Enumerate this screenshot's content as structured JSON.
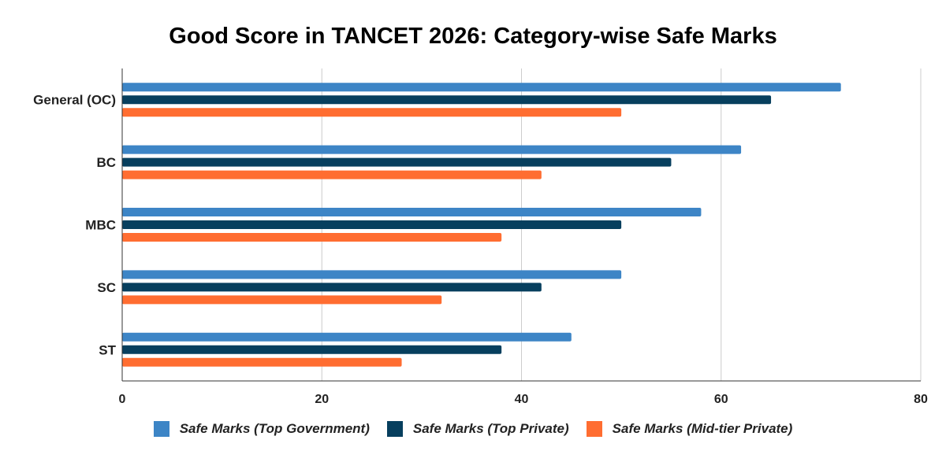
{
  "chart_data": {
    "type": "bar",
    "orientation": "horizontal",
    "title": "Good Score in TANCET 2026: Category-wise Safe Marks",
    "categories": [
      "General (OC)",
      "BC",
      "MBC",
      "SC",
      "ST"
    ],
    "series": [
      {
        "name": "Safe Marks (Top Government)",
        "color": "#3d85c6",
        "values": [
          72,
          62,
          58,
          50,
          45
        ]
      },
      {
        "name": "Safe Marks (Top Private)",
        "color": "#073f5e",
        "values": [
          65,
          55,
          50,
          42,
          38
        ]
      },
      {
        "name": "Safe Marks (Mid-tier Private)",
        "color": "#ff6d31",
        "values": [
          50,
          42,
          38,
          32,
          28
        ]
      }
    ],
    "xlim": [
      0,
      80
    ],
    "x_ticks": [
      0,
      20,
      40,
      60,
      80
    ],
    "grid": true,
    "legend_position": "bottom"
  }
}
